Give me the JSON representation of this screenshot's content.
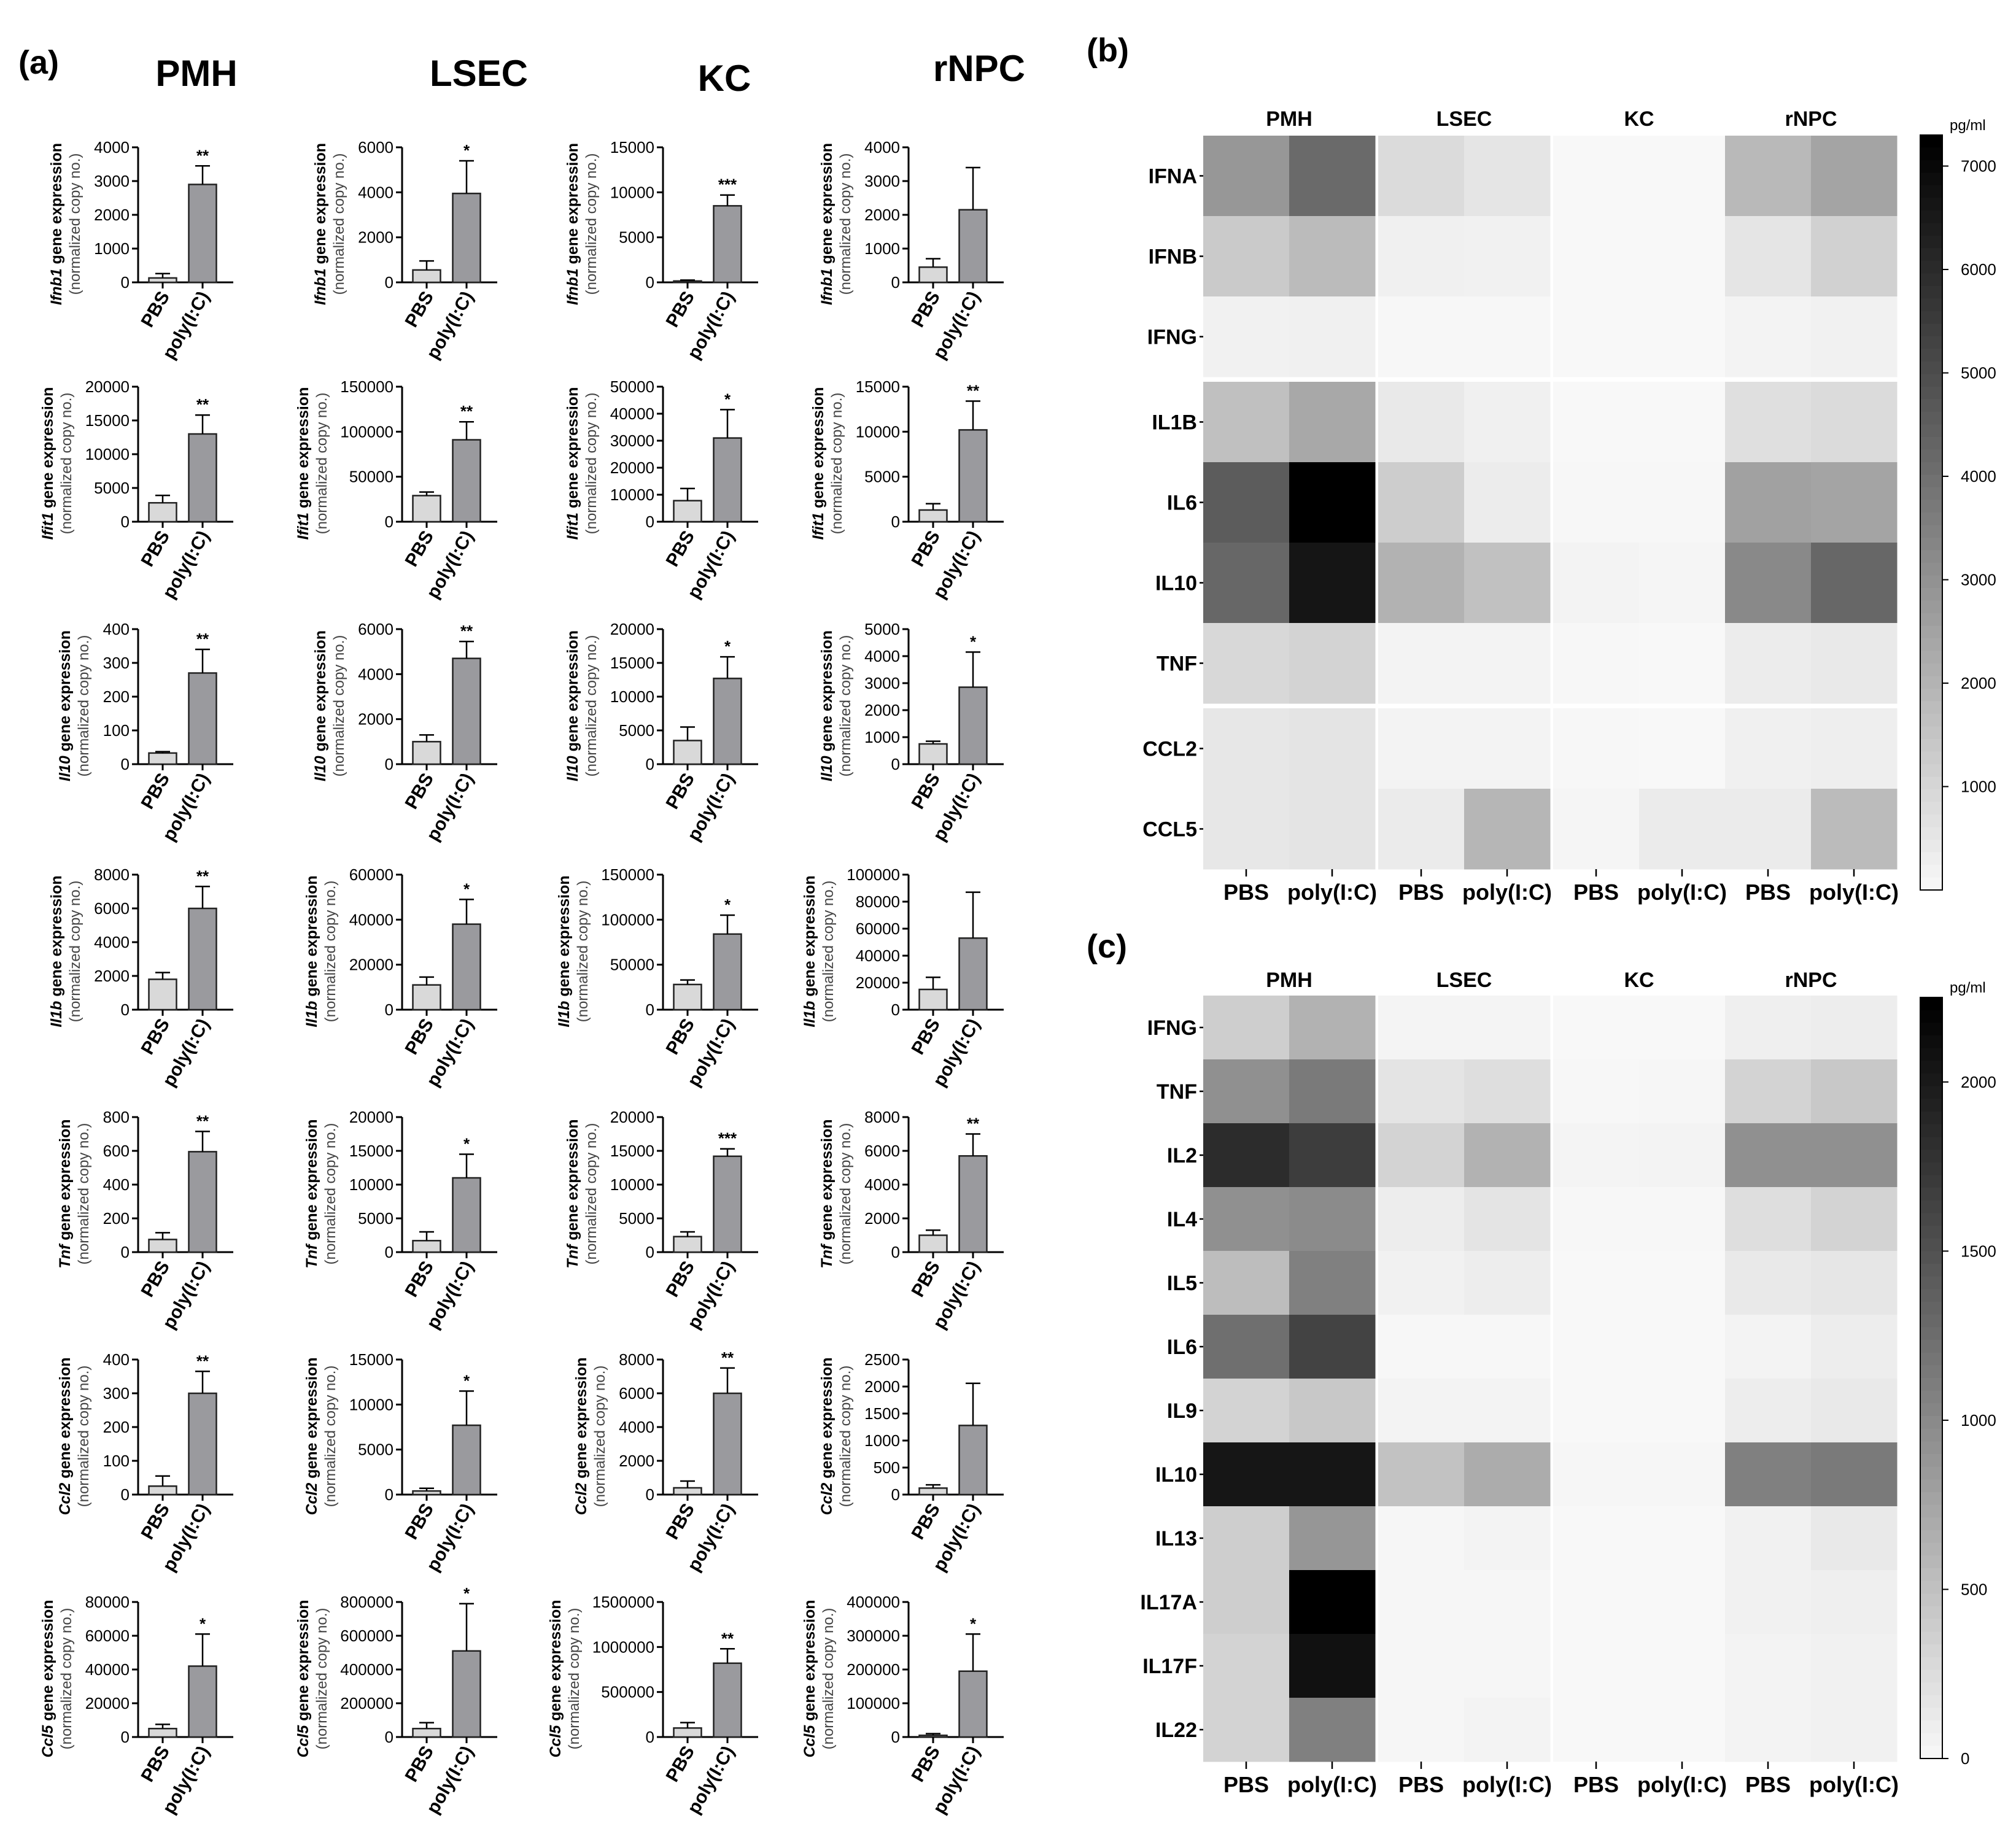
{
  "figure": {
    "panel_labels": [
      "(a)",
      "(b)",
      "(c)"
    ],
    "x_categories": [
      "PBS",
      "poly(I:C)"
    ],
    "ylabel_suffix": " gene expression",
    "ylabel_sub": "(normalized copy no.)"
  },
  "chart_data": [
    {
      "type": "bar",
      "panel": "(a)",
      "cells": [
        "PMH",
        "LSEC",
        "KC",
        "rNPC"
      ],
      "genes": [
        "Ifnb1",
        "Ifit1",
        "Il10",
        "Il1b",
        "Tnf",
        "Ccl2",
        "Ccl5"
      ],
      "categories": [
        "PBS",
        "poly(I:C)"
      ],
      "subplots": [
        {
          "cell": "PMH",
          "gene": "Ifnb1",
          "ymax": 4000,
          "step": 1000,
          "ticks": [
            "0",
            "1000",
            "2000",
            "3000",
            "4000"
          ],
          "values": [
            130,
            2900
          ],
          "errors": [
            130,
            550
          ],
          "sig": "**"
        },
        {
          "cell": "LSEC",
          "gene": "Ifnb1",
          "ymax": 6000,
          "step": 2000,
          "ticks": [
            "0",
            "2000",
            "4000",
            "6000"
          ],
          "values": [
            550,
            3950
          ],
          "errors": [
            400,
            1450
          ],
          "sig": "*"
        },
        {
          "cell": "KC",
          "gene": "Ifnb1",
          "ymax": 15000,
          "step": 5000,
          "ticks": [
            "0",
            "5000",
            "10000",
            "15000"
          ],
          "values": [
            150,
            8500
          ],
          "errors": [
            100,
            1200
          ],
          "sig": "***"
        },
        {
          "cell": "rNPC",
          "gene": "Ifnb1",
          "ymax": 4000,
          "step": 1000,
          "ticks": [
            "0",
            "1000",
            "2000",
            "3000",
            "4000"
          ],
          "values": [
            450,
            2150
          ],
          "errors": [
            250,
            1250
          ],
          "sig": ""
        },
        {
          "cell": "PMH",
          "gene": "Ifit1",
          "ymax": 20000,
          "step": 5000,
          "ticks": [
            "0",
            "5000",
            "10000",
            "15000",
            "20000"
          ],
          "values": [
            2800,
            13000
          ],
          "errors": [
            1100,
            2800
          ],
          "sig": "**"
        },
        {
          "cell": "LSEC",
          "gene": "Ifit1",
          "ymax": 150000,
          "step": 50000,
          "ticks": [
            "0",
            "50000",
            "100000",
            "150000"
          ],
          "values": [
            29000,
            91000
          ],
          "errors": [
            4000,
            20000
          ],
          "sig": "**"
        },
        {
          "cell": "KC",
          "gene": "Ifit1",
          "ymax": 50000,
          "step": 10000,
          "ticks": [
            "0",
            "10000",
            "20000",
            "30000",
            "40000",
            "50000"
          ],
          "values": [
            7800,
            31000
          ],
          "errors": [
            4500,
            10500
          ],
          "sig": "*"
        },
        {
          "cell": "rNPC",
          "gene": "Ifit1",
          "ymax": 15000,
          "step": 5000,
          "ticks": [
            "0",
            "5000",
            "10000",
            "15000"
          ],
          "values": [
            1300,
            10200
          ],
          "errors": [
            700,
            3200
          ],
          "sig": "**"
        },
        {
          "cell": "PMH",
          "gene": "Il10",
          "ymax": 400,
          "step": 100,
          "ticks": [
            "0",
            "100",
            "200",
            "300",
            "400"
          ],
          "values": [
            33,
            270
          ],
          "errors": [
            4,
            70
          ],
          "sig": "**"
        },
        {
          "cell": "LSEC",
          "gene": "Il10",
          "ymax": 6000,
          "step": 2000,
          "ticks": [
            "0",
            "2000",
            "4000",
            "6000"
          ],
          "values": [
            1000,
            4700
          ],
          "errors": [
            300,
            750
          ],
          "sig": "**"
        },
        {
          "cell": "KC",
          "gene": "Il10",
          "ymax": 20000,
          "step": 5000,
          "ticks": [
            "0",
            "5000",
            "10000",
            "15000",
            "20000"
          ],
          "values": [
            3500,
            12700
          ],
          "errors": [
            2000,
            3200
          ],
          "sig": "*"
        },
        {
          "cell": "rNPC",
          "gene": "Il10",
          "ymax": 5000,
          "step": 1000,
          "ticks": [
            "0",
            "1000",
            "2000",
            "3000",
            "4000",
            "5000"
          ],
          "values": [
            750,
            2850
          ],
          "errors": [
            100,
            1300
          ],
          "sig": "*"
        },
        {
          "cell": "PMH",
          "gene": "Il1b",
          "ymax": 8000,
          "step": 2000,
          "ticks": [
            "0",
            "2000",
            "4000",
            "6000",
            "8000"
          ],
          "values": [
            1800,
            6000
          ],
          "errors": [
            400,
            1300
          ],
          "sig": "**"
        },
        {
          "cell": "LSEC",
          "gene": "Il1b",
          "ymax": 60000,
          "step": 20000,
          "ticks": [
            "0",
            "20000",
            "40000",
            "60000"
          ],
          "values": [
            11000,
            38000
          ],
          "errors": [
            3500,
            11000
          ],
          "sig": "*"
        },
        {
          "cell": "KC",
          "gene": "Il1b",
          "ymax": 150000,
          "step": 50000,
          "ticks": [
            "0",
            "50000",
            "100000",
            "150000"
          ],
          "values": [
            28000,
            84000
          ],
          "errors": [
            5000,
            21000
          ],
          "sig": "*"
        },
        {
          "cell": "rNPC",
          "gene": "Il1b",
          "ymax": 100000,
          "step": 20000,
          "ticks": [
            "0",
            "20000",
            "40000",
            "60000",
            "80000",
            "100000"
          ],
          "values": [
            15000,
            53000
          ],
          "errors": [
            9000,
            34000
          ],
          "sig": ""
        },
        {
          "cell": "PMH",
          "gene": "Tnf",
          "ymax": 800,
          "step": 200,
          "ticks": [
            "0",
            "200",
            "400",
            "600",
            "800"
          ],
          "values": [
            75,
            595
          ],
          "errors": [
            40,
            120
          ],
          "sig": "**"
        },
        {
          "cell": "LSEC",
          "gene": "Tnf",
          "ymax": 20000,
          "step": 5000,
          "ticks": [
            "0",
            "5000",
            "10000",
            "15000",
            "20000"
          ],
          "values": [
            1700,
            11000
          ],
          "errors": [
            1300,
            3500
          ],
          "sig": "*"
        },
        {
          "cell": "KC",
          "gene": "Tnf",
          "ymax": 20000,
          "step": 5000,
          "ticks": [
            "0",
            "5000",
            "10000",
            "15000",
            "20000"
          ],
          "values": [
            2300,
            14200
          ],
          "errors": [
            700,
            1100
          ],
          "sig": "***"
        },
        {
          "cell": "rNPC",
          "gene": "Tnf",
          "ymax": 8000,
          "step": 2000,
          "ticks": [
            "0",
            "2000",
            "4000",
            "6000",
            "8000"
          ],
          "values": [
            1000,
            5700
          ],
          "errors": [
            300,
            1300
          ],
          "sig": "**"
        },
        {
          "cell": "PMH",
          "gene": "Ccl2",
          "ymax": 400,
          "step": 100,
          "ticks": [
            "0",
            "100",
            "200",
            "300",
            "400"
          ],
          "values": [
            25,
            300
          ],
          "errors": [
            30,
            65
          ],
          "sig": "**"
        },
        {
          "cell": "LSEC",
          "gene": "Ccl2",
          "ymax": 15000,
          "step": 5000,
          "ticks": [
            "0",
            "5000",
            "10000",
            "15000"
          ],
          "values": [
            400,
            7700
          ],
          "errors": [
            300,
            3800
          ],
          "sig": "*"
        },
        {
          "cell": "KC",
          "gene": "Ccl2",
          "ymax": 8000,
          "step": 2000,
          "ticks": [
            "0",
            "2000",
            "4000",
            "6000",
            "8000"
          ],
          "values": [
            400,
            6000
          ],
          "errors": [
            400,
            1500
          ],
          "sig": "**"
        },
        {
          "cell": "rNPC",
          "gene": "Ccl2",
          "ymax": 2500,
          "step": 500,
          "ticks": [
            "0",
            "500",
            "1000",
            "1500",
            "2000",
            "2500"
          ],
          "values": [
            120,
            1280
          ],
          "errors": [
            60,
            780
          ],
          "sig": ""
        },
        {
          "cell": "PMH",
          "gene": "Ccl5",
          "ymax": 80000,
          "step": 20000,
          "ticks": [
            "0",
            "20000",
            "40000",
            "60000",
            "80000"
          ],
          "values": [
            5000,
            42000
          ],
          "errors": [
            2500,
            19000
          ],
          "sig": "*"
        },
        {
          "cell": "LSEC",
          "gene": "Ccl5",
          "ymax": 800000,
          "step": 200000,
          "ticks": [
            "0",
            "200000",
            "400000",
            "600000",
            "800000"
          ],
          "values": [
            50000,
            510000
          ],
          "errors": [
            35000,
            280000
          ],
          "sig": "*"
        },
        {
          "cell": "KC",
          "gene": "Ccl5",
          "ymax": 1500000,
          "step": 500000,
          "ticks": [
            "0",
            "500000",
            "1000000",
            "1500000"
          ],
          "values": [
            100000,
            820000
          ],
          "errors": [
            60000,
            160000
          ],
          "sig": "**"
        },
        {
          "cell": "rNPC",
          "gene": "Ccl5",
          "ymax": 400000,
          "step": 100000,
          "ticks": [
            "0",
            "100000",
            "200000",
            "300000",
            "400000"
          ],
          "values": [
            5000,
            195000
          ],
          "errors": [
            5000,
            110000
          ],
          "sig": "*"
        }
      ]
    },
    {
      "type": "heatmap",
      "panel": "(b)",
      "groups": [
        "PMH",
        "LSEC",
        "KC",
        "rNPC"
      ],
      "x_labels": [
        "PBS",
        "poly(I:C)"
      ],
      "rows": [
        "IFNA",
        "IFNB",
        "IFNG",
        "IL1B",
        "IL6",
        "IL10",
        "TNF",
        "CCL2",
        "CCL5"
      ],
      "row_gaps_after": [
        2,
        6
      ],
      "unit": "pg/ml",
      "vmax": 7300,
      "colorbar_ticks": [
        "1000",
        "2000",
        "3000",
        "4000",
        "5000",
        "6000",
        "7000"
      ],
      "values": [
        [
          2900,
          4200,
          900,
          600,
          50,
          50,
          1900,
          2500
        ],
        [
          1400,
          1850,
          300,
          250,
          50,
          50,
          600,
          1200
        ],
        [
          250,
          300,
          100,
          100,
          50,
          50,
          200,
          250
        ],
        [
          1700,
          2400,
          500,
          300,
          60,
          50,
          800,
          900
        ],
        [
          4600,
          7300,
          1300,
          400,
          100,
          80,
          2600,
          2500
        ],
        [
          4300,
          6700,
          2100,
          1650,
          200,
          150,
          3300,
          4300
        ],
        [
          1000,
          1150,
          200,
          200,
          80,
          50,
          400,
          500
        ],
        [
          550,
          650,
          200,
          200,
          80,
          50,
          300,
          350
        ],
        [
          550,
          650,
          450,
          2000,
          150,
          450,
          450,
          1850
        ]
      ]
    },
    {
      "type": "heatmap",
      "panel": "(c)",
      "groups": [
        "PMH",
        "LSEC",
        "KC",
        "rNPC"
      ],
      "x_labels": [
        "PBS",
        "poly(I:C)"
      ],
      "rows": [
        "IFNG",
        "TNF",
        "IL2",
        "IL4",
        "IL5",
        "IL6",
        "IL9",
        "IL10",
        "IL13",
        "IL17A",
        "IL17F",
        "IL22"
      ],
      "row_gaps_after": [],
      "unit": "pg/ml",
      "vmax": 2250,
      "colorbar_ticks": [
        "0",
        "500",
        "1000",
        "1500",
        "2000"
      ],
      "values": [
        [
          400,
          650,
          50,
          50,
          20,
          20,
          100,
          120
        ],
        [
          950,
          1150,
          200,
          250,
          30,
          40,
          350,
          450
        ],
        [
          1850,
          1700,
          350,
          650,
          50,
          60,
          950,
          950
        ],
        [
          950,
          1000,
          120,
          200,
          30,
          30,
          250,
          350
        ],
        [
          550,
          1100,
          80,
          120,
          20,
          20,
          150,
          180
        ],
        [
          1250,
          1650,
          30,
          30,
          20,
          20,
          60,
          120
        ],
        [
          350,
          450,
          60,
          60,
          20,
          20,
          120,
          150
        ],
        [
          2050,
          2050,
          500,
          700,
          40,
          40,
          1100,
          1150
        ],
        [
          400,
          900,
          40,
          60,
          20,
          20,
          80,
          150
        ],
        [
          400,
          2250,
          40,
          40,
          20,
          20,
          80,
          100
        ],
        [
          350,
          2100,
          40,
          40,
          20,
          20,
          60,
          80
        ],
        [
          350,
          1100,
          40,
          60,
          20,
          20,
          60,
          80
        ]
      ]
    }
  ]
}
